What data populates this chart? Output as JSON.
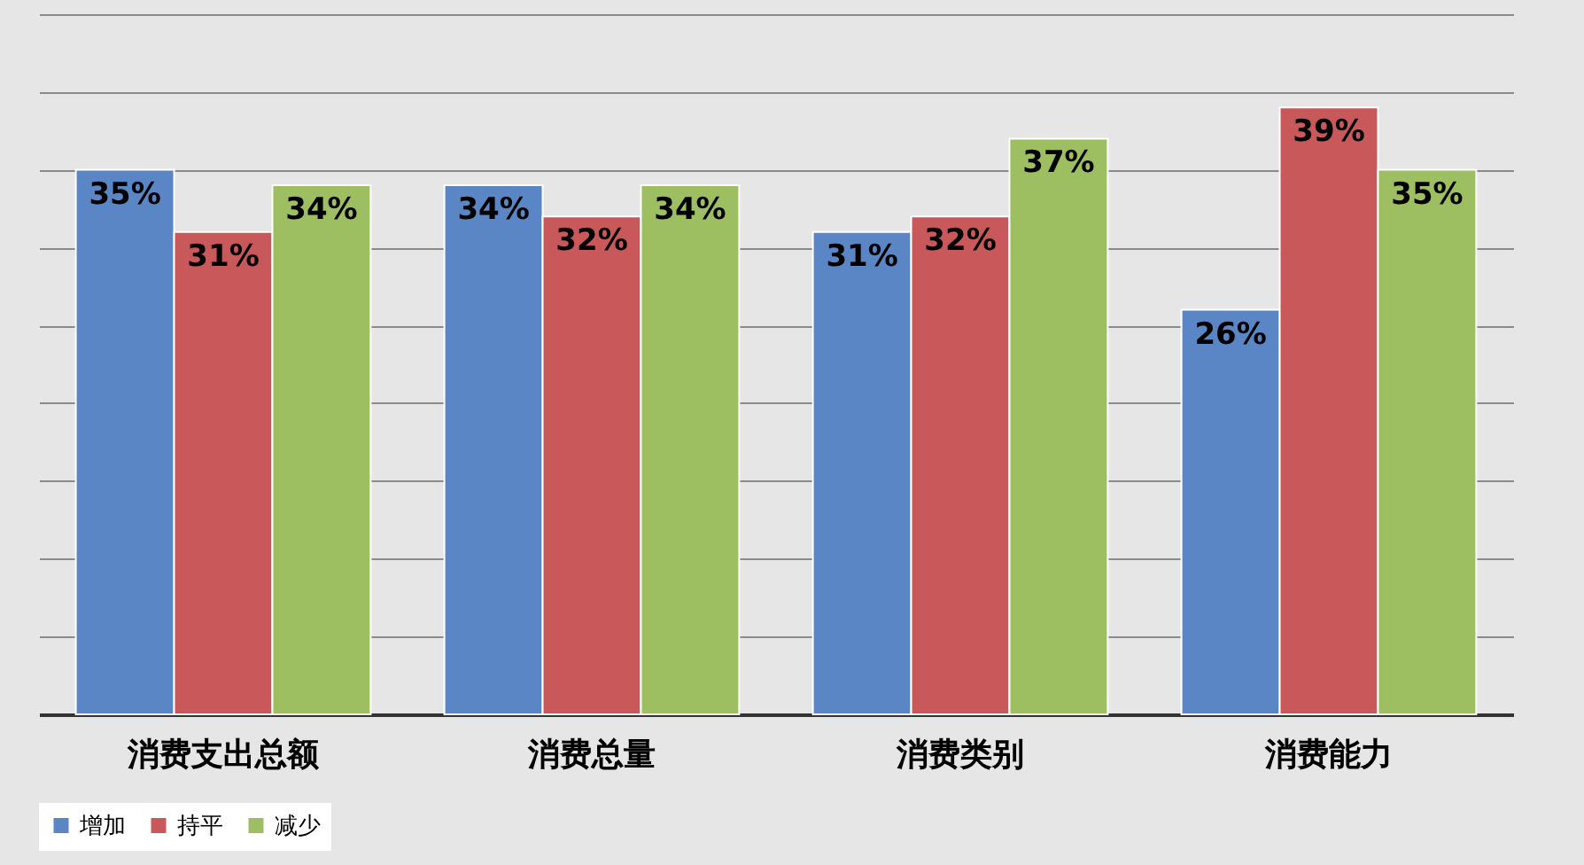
{
  "chart_data": {
    "type": "bar",
    "categories": [
      "消费支出总额",
      "消费总量",
      "消费类别",
      "消费能力"
    ],
    "series": [
      {
        "name": "增加",
        "color": "#5b86c5",
        "values": [
          35,
          34,
          31,
          26
        ],
        "value_labels": [
          "35%",
          "34%",
          "31%",
          "26%"
        ]
      },
      {
        "name": "持平",
        "color": "#c9585a",
        "values": [
          31,
          32,
          32,
          39
        ],
        "value_labels": [
          "31%",
          "32%",
          "32%",
          "39%"
        ]
      },
      {
        "name": "减少",
        "color": "#9dbf62",
        "values": [
          34,
          34,
          37,
          35
        ],
        "value_labels": [
          "34%",
          "34%",
          "37%",
          "35%"
        ]
      }
    ],
    "ylim": [
      0,
      45
    ],
    "yticks": [
      0,
      5,
      10,
      15,
      20,
      25,
      30,
      35,
      40,
      45
    ],
    "tick_labels": "x",
    "grid": "y",
    "legend": "bottom"
  }
}
